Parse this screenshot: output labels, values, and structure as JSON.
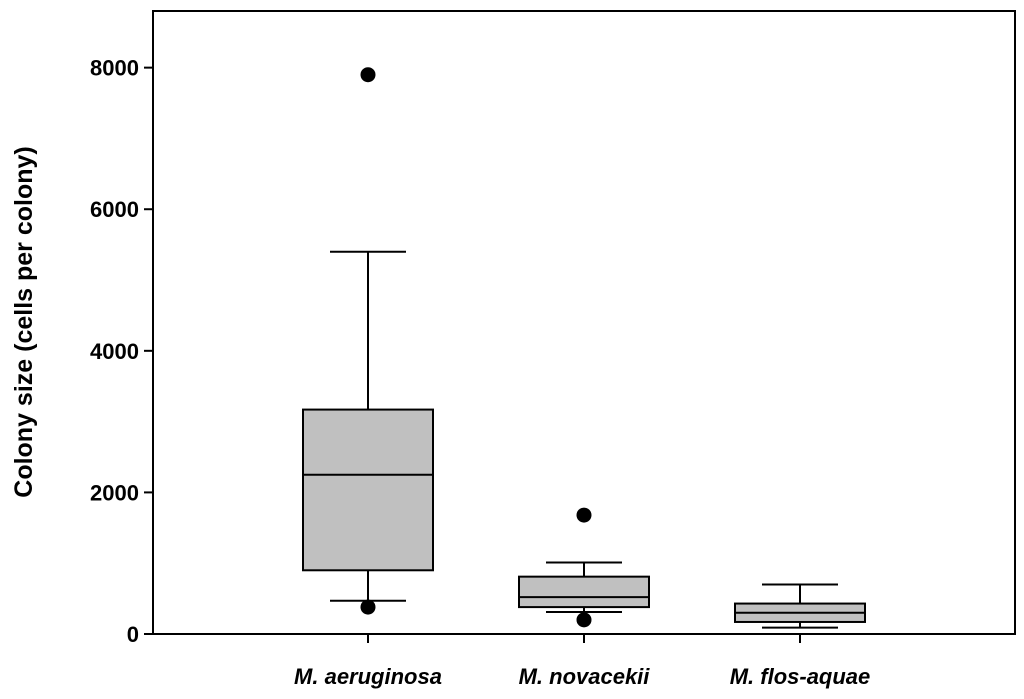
{
  "chart_data": {
    "type": "box",
    "ylabel": "Colony size (cells per colony)",
    "xlabel": "",
    "ylim": [
      0,
      8800
    ],
    "yticks": [
      0,
      2000,
      4000,
      6000,
      8000
    ],
    "categories": [
      "M. aeruginosa",
      "M. novacekii",
      "M. flos-aquae"
    ],
    "boxes": [
      {
        "category": "M. aeruginosa",
        "whisker_low": 470,
        "q1": 900,
        "median": 2250,
        "q3": 3170,
        "whisker_high": 5400,
        "outliers": [
          7900,
          380
        ]
      },
      {
        "category": "M. novacekii",
        "whisker_low": 310,
        "q1": 380,
        "median": 520,
        "q3": 810,
        "whisker_high": 1010,
        "outliers": [
          1680,
          200
        ]
      },
      {
        "category": "M. flos-aquae",
        "whisker_low": 90,
        "q1": 170,
        "median": 300,
        "q3": 430,
        "whisker_high": 700,
        "outliers": []
      }
    ],
    "box_fill": "#c0c0c0",
    "line_color": "#000000",
    "grid": false,
    "legend": "none"
  }
}
